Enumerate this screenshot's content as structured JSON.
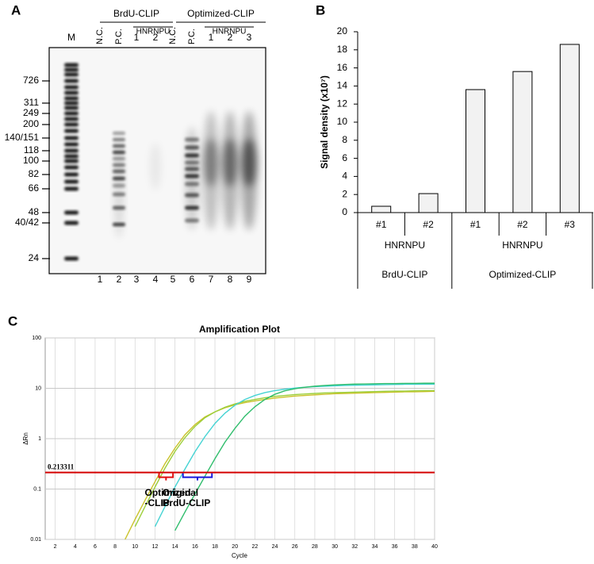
{
  "panel_labels": [
    "A",
    "B",
    "C"
  ],
  "gel": {
    "headers": [
      {
        "text": "BrdU-CLIP",
        "subheader": "HNRNPU"
      },
      {
        "text": "Optimized-CLIP",
        "subheader": "HNRNPU"
      }
    ],
    "lane_labels": [
      "M",
      "N.C.",
      "P.C.",
      "1",
      "2",
      "N.C.",
      "P.C.",
      "1",
      "2",
      "3"
    ],
    "lane_numbers": [
      "1",
      "2",
      "3",
      "4",
      "5",
      "6",
      "7",
      "8",
      "9"
    ],
    "marker_sizes": [
      "726",
      "311",
      "249",
      "200",
      "140/151",
      "118",
      "100",
      "82",
      "66",
      "48",
      "40/42",
      "24"
    ]
  },
  "chart_data": [
    {
      "type": "bar",
      "ylabel": "Signal density (x10⁷)",
      "ylim": [
        0,
        20
      ],
      "yticks": [
        0,
        2,
        4,
        6,
        8,
        10,
        12,
        14,
        16,
        18,
        20
      ],
      "color": "#f2f2f2",
      "edge_color": "#000000",
      "groups": [
        {
          "name": "BrdU-CLIP",
          "subgroup": "HNRNPU",
          "categories": [
            "#1",
            "#2"
          ],
          "values": [
            0.7,
            2.1
          ]
        },
        {
          "name": "Optimized-CLIP",
          "subgroup": "HNRNPU",
          "categories": [
            "#1",
            "#2",
            "#3"
          ],
          "values": [
            13.6,
            15.6,
            18.6
          ]
        }
      ]
    },
    {
      "type": "line",
      "title": "Amplification Plot",
      "xlabel": "Cycle",
      "ylabel": "ΔRn",
      "log_y": true,
      "grid": true,
      "xlim": [
        1,
        40
      ],
      "xticks": [
        2,
        4,
        6,
        8,
        10,
        12,
        14,
        16,
        18,
        20,
        22,
        24,
        26,
        28,
        30,
        32,
        34,
        36,
        38,
        40
      ],
      "ylim": [
        0.01,
        100
      ],
      "yticks": [
        0.01,
        0.1,
        1,
        10,
        100
      ],
      "x": [
        9,
        10,
        11,
        12,
        13,
        14,
        15,
        16,
        17,
        18,
        19,
        20,
        21,
        22,
        23,
        24,
        25,
        26,
        27,
        28,
        29,
        30,
        31,
        32,
        33,
        34,
        35,
        36,
        37,
        38,
        39,
        40
      ],
      "series": [
        {
          "color": "#c9c22a",
          "values": [
            0.01,
            0.025,
            0.06,
            0.14,
            0.32,
            0.65,
            1.2,
            1.9,
            2.7,
            3.4,
            4.1,
            4.7,
            5.2,
            5.6,
            6.0,
            6.4,
            6.7,
            7.0,
            7.2,
            7.4,
            7.6,
            7.8,
            7.9,
            8.0,
            8.1,
            8.2,
            8.3,
            8.4,
            8.5,
            8.5,
            8.6,
            8.7
          ]
        },
        {
          "color": "#9ccf3a",
          "values": [
            null,
            0.018,
            0.045,
            0.11,
            0.26,
            0.56,
            1.05,
            1.75,
            2.6,
            3.4,
            4.2,
            4.9,
            5.5,
            6.0,
            6.5,
            6.9,
            7.2,
            7.5,
            7.7,
            7.9,
            8.1,
            8.2,
            8.3,
            8.4,
            8.5,
            8.6,
            8.7,
            8.8,
            8.8,
            8.9,
            9.0,
            9.0
          ]
        },
        {
          "color": "#45d3d3",
          "values": [
            null,
            null,
            null,
            0.018,
            0.045,
            0.11,
            0.25,
            0.55,
            1.1,
            2.0,
            3.2,
            4.6,
            6.0,
            7.2,
            8.2,
            9.0,
            9.6,
            10.1,
            10.5,
            10.8,
            11.0,
            11.2,
            11.4,
            11.5,
            11.6,
            11.7,
            11.8,
            11.9,
            12.0,
            12.0,
            12.1,
            12.1
          ]
        },
        {
          "color": "#2fbd6c",
          "values": [
            null,
            null,
            null,
            null,
            null,
            0.015,
            0.035,
            0.08,
            0.18,
            0.4,
            0.85,
            1.6,
            2.8,
            4.3,
            6.0,
            7.6,
            8.9,
            9.8,
            10.5,
            11.0,
            11.4,
            11.7,
            11.9,
            12.1,
            12.2,
            12.3,
            12.4,
            12.4,
            12.5,
            12.5,
            12.6,
            12.6
          ]
        }
      ],
      "threshold": 0.213311,
      "threshold_color": "#d40000",
      "annotations": [
        {
          "lines": [
            "Optimized",
            "-CLIP"
          ],
          "color": "#e01010",
          "x_range": [
            12.4,
            13.8
          ]
        },
        {
          "lines": [
            "Original",
            "BrdU-CLIP"
          ],
          "color": "#1a1adc",
          "x_range": [
            14.8,
            17.7
          ]
        }
      ]
    }
  ]
}
